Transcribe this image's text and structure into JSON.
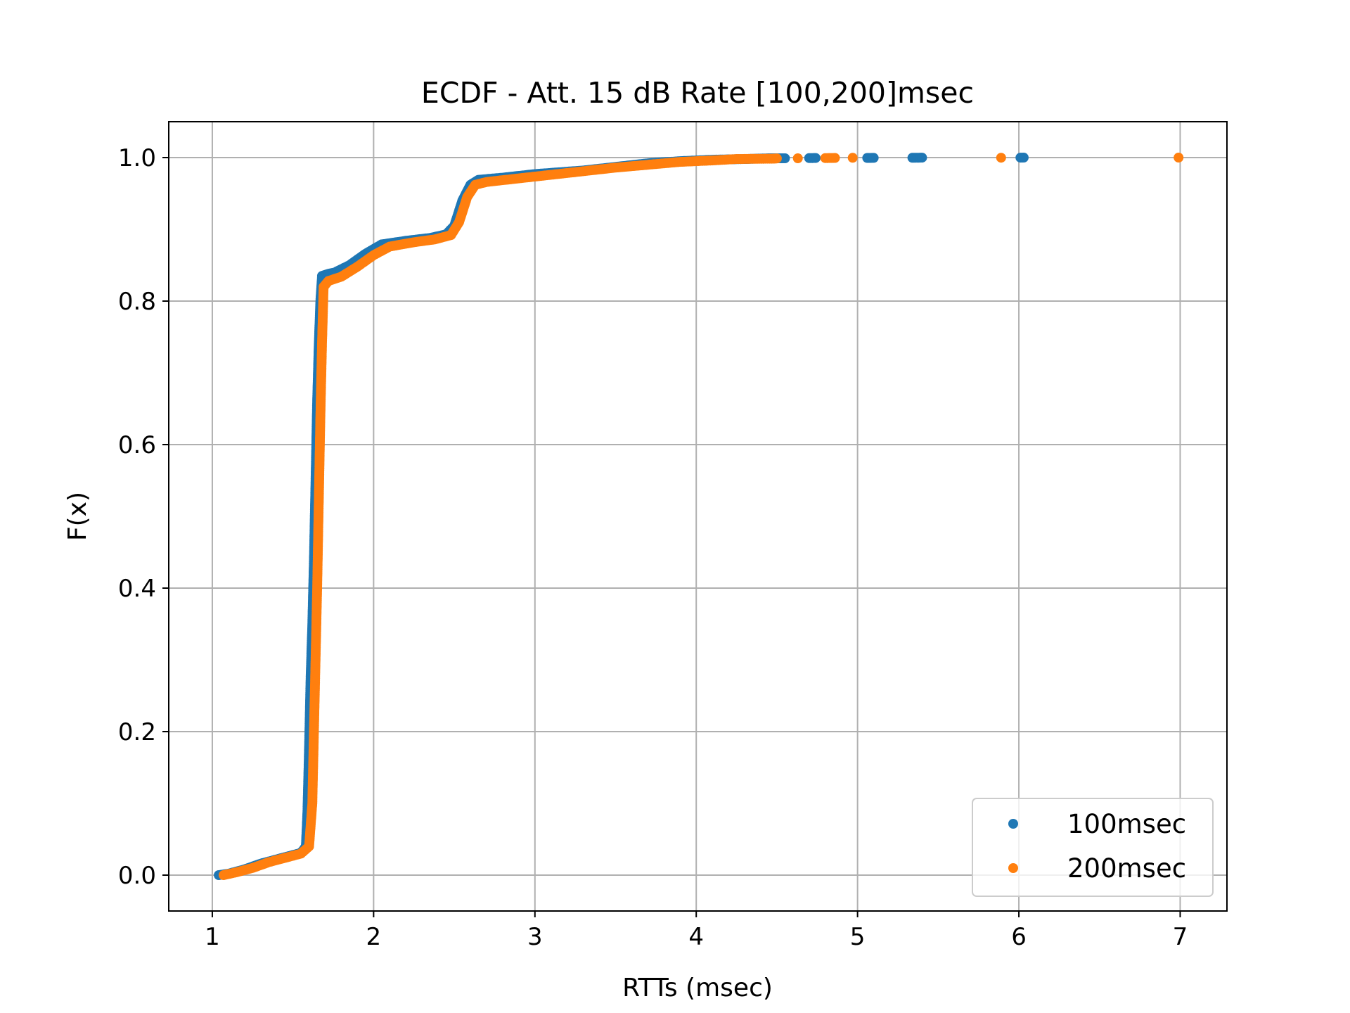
{
  "chart_data": {
    "type": "scatter",
    "title": "ECDF - Att. 15 dB Rate [100,200]msec",
    "xlabel": "RTTs (msec)",
    "ylabel": "F(x)",
    "xlim": [
      0.73,
      7.29
    ],
    "ylim": [
      -0.05,
      1.05
    ],
    "xticks": [
      "1",
      "2",
      "3",
      "4",
      "5",
      "6",
      "7"
    ],
    "yticks": [
      "0.0",
      "0.2",
      "0.4",
      "0.6",
      "0.8",
      "1.0"
    ],
    "grid": true,
    "legend_placement": "lower-right",
    "series": [
      {
        "name": "100msec",
        "color": "#1f77b4",
        "points": [
          [
            1.04,
            0.0
          ],
          [
            1.1,
            0.002
          ],
          [
            1.2,
            0.008
          ],
          [
            1.3,
            0.016
          ],
          [
            1.4,
            0.022
          ],
          [
            1.5,
            0.028
          ],
          [
            1.55,
            0.031
          ],
          [
            1.58,
            0.04
          ],
          [
            1.59,
            0.09
          ],
          [
            1.6,
            0.18
          ],
          [
            1.61,
            0.28
          ],
          [
            1.62,
            0.35
          ],
          [
            1.63,
            0.44
          ],
          [
            1.64,
            0.55
          ],
          [
            1.65,
            0.66
          ],
          [
            1.66,
            0.74
          ],
          [
            1.67,
            0.8
          ],
          [
            1.68,
            0.835
          ],
          [
            1.72,
            0.838
          ],
          [
            1.76,
            0.84
          ],
          [
            1.85,
            0.85
          ],
          [
            1.95,
            0.866
          ],
          [
            2.05,
            0.879
          ],
          [
            2.2,
            0.884
          ],
          [
            2.35,
            0.888
          ],
          [
            2.45,
            0.893
          ],
          [
            2.5,
            0.905
          ],
          [
            2.55,
            0.94
          ],
          [
            2.6,
            0.962
          ],
          [
            2.65,
            0.969
          ],
          [
            2.8,
            0.972
          ],
          [
            3.0,
            0.977
          ],
          [
            3.3,
            0.982
          ],
          [
            3.5,
            0.987
          ],
          [
            3.7,
            0.992
          ],
          [
            3.9,
            0.995
          ],
          [
            4.1,
            0.997
          ],
          [
            4.3,
            0.998
          ],
          [
            4.45,
            0.999
          ],
          [
            4.55,
            0.999
          ],
          [
            4.7,
            0.9993
          ],
          [
            4.74,
            0.9994
          ],
          [
            5.06,
            0.9995
          ],
          [
            5.1,
            0.9996
          ],
          [
            5.34,
            0.9997
          ],
          [
            5.36,
            0.9998
          ],
          [
            5.4,
            0.9999
          ],
          [
            6.01,
            0.9999
          ],
          [
            6.03,
            1.0
          ]
        ]
      },
      {
        "name": "200msec",
        "color": "#ff7f0e",
        "points": [
          [
            1.07,
            0.0
          ],
          [
            1.15,
            0.004
          ],
          [
            1.25,
            0.01
          ],
          [
            1.35,
            0.018
          ],
          [
            1.45,
            0.024
          ],
          [
            1.55,
            0.03
          ],
          [
            1.6,
            0.04
          ],
          [
            1.62,
            0.1
          ],
          [
            1.63,
            0.2
          ],
          [
            1.64,
            0.3
          ],
          [
            1.65,
            0.4
          ],
          [
            1.66,
            0.52
          ],
          [
            1.67,
            0.64
          ],
          [
            1.68,
            0.74
          ],
          [
            1.69,
            0.82
          ],
          [
            1.72,
            0.828
          ],
          [
            1.8,
            0.834
          ],
          [
            1.9,
            0.848
          ],
          [
            2.0,
            0.864
          ],
          [
            2.1,
            0.876
          ],
          [
            2.25,
            0.882
          ],
          [
            2.38,
            0.886
          ],
          [
            2.48,
            0.892
          ],
          [
            2.53,
            0.91
          ],
          [
            2.58,
            0.945
          ],
          [
            2.63,
            0.962
          ],
          [
            2.7,
            0.966
          ],
          [
            2.9,
            0.971
          ],
          [
            3.1,
            0.976
          ],
          [
            3.3,
            0.981
          ],
          [
            3.5,
            0.986
          ],
          [
            3.7,
            0.99
          ],
          [
            3.9,
            0.994
          ],
          [
            4.1,
            0.996
          ],
          [
            4.25,
            0.998
          ],
          [
            4.48,
            0.9985
          ],
          [
            4.5,
            0.9988
          ],
          [
            4.63,
            0.999
          ],
          [
            4.8,
            0.9993
          ],
          [
            4.86,
            0.9995
          ],
          [
            4.97,
            0.9997
          ],
          [
            5.89,
            0.9998
          ],
          [
            6.99,
            1.0
          ]
        ]
      }
    ]
  }
}
